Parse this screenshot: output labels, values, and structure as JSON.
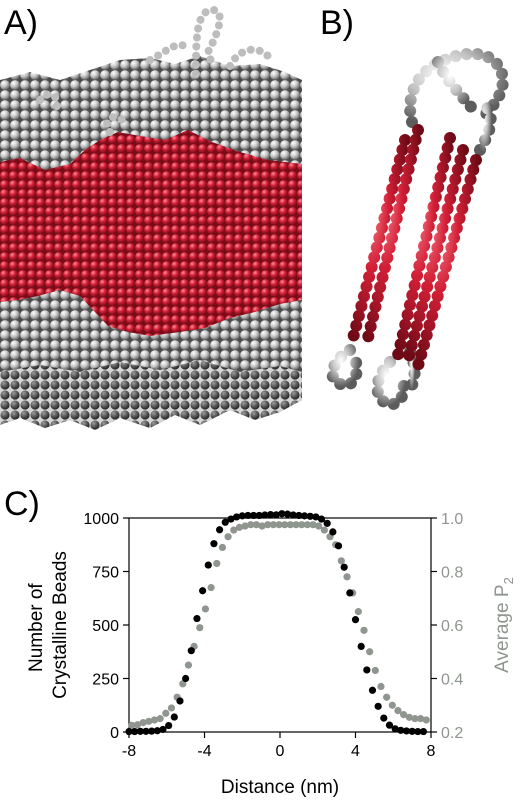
{
  "panels": {
    "a_label": "A)",
    "b_label": "B)",
    "c_label": "C)"
  },
  "colors": {
    "crystalline": "#cc1a30",
    "amorphous": "#b8b8b8",
    "black_series": "#000000",
    "grey_series": "#8f958f"
  },
  "chart_data": {
    "type": "scatter",
    "xlabel": "Distance (nm)",
    "ylabel_left": "Number of Crystalline Beads",
    "ylabel_left_lines": [
      "Number of",
      "Crystalline Beads"
    ],
    "ylabel_right": "Average P2",
    "ylabel_right_main": "Average P",
    "ylabel_right_sub": "2",
    "xlim": [
      -8,
      8
    ],
    "ylim_left": [
      0,
      1000
    ],
    "ylim_right": [
      0.2,
      1.0
    ],
    "x_ticks": [
      -8,
      -4,
      0,
      4,
      8
    ],
    "y_ticks_left": [
      0,
      250,
      500,
      750,
      1000
    ],
    "y_ticks_right": [
      "0.2",
      "0.4",
      "0.6",
      "0.8",
      "1.0"
    ],
    "series": [
      {
        "axis": "left",
        "color": "#000000",
        "x": [
          -8.0,
          -7.7,
          -7.4,
          -7.1,
          -6.8,
          -6.5,
          -6.2,
          -5.9,
          -5.6,
          -5.3,
          -5.0,
          -4.7,
          -4.4,
          -4.1,
          -3.8,
          -3.5,
          -3.2,
          -2.9,
          -2.6,
          -2.3,
          -2.0,
          -1.7,
          -1.4,
          -1.1,
          -0.8,
          -0.5,
          -0.2,
          0.1,
          0.4,
          0.7,
          1.0,
          1.3,
          1.6,
          1.9,
          2.2,
          2.5,
          2.8,
          3.1,
          3.4,
          3.7,
          4.0,
          4.3,
          4.6,
          4.9,
          5.2,
          5.5,
          5.8,
          6.1,
          6.4,
          6.7,
          7.0,
          7.3,
          7.6
        ],
        "values": [
          2,
          2,
          3,
          3,
          4,
          6,
          12,
          30,
          70,
          145,
          250,
          380,
          530,
          660,
          780,
          880,
          945,
          980,
          995,
          1005,
          1010,
          1012,
          1012,
          1012,
          1014,
          1016,
          1015,
          1020,
          1018,
          1014,
          1012,
          1010,
          1008,
          1005,
          995,
          975,
          935,
          870,
          770,
          650,
          525,
          400,
          290,
          195,
          120,
          65,
          32,
          15,
          8,
          5,
          3,
          2,
          2
        ]
      },
      {
        "axis": "right",
        "color": "#8f958f",
        "x": [
          -7.85,
          -7.55,
          -7.25,
          -6.95,
          -6.65,
          -6.35,
          -6.05,
          -5.75,
          -5.45,
          -5.15,
          -4.85,
          -4.55,
          -4.25,
          -3.95,
          -3.65,
          -3.35,
          -3.05,
          -2.75,
          -2.45,
          -2.15,
          -1.85,
          -1.55,
          -1.25,
          -0.95,
          -0.65,
          -0.35,
          -0.05,
          0.25,
          0.55,
          0.85,
          1.15,
          1.45,
          1.75,
          2.05,
          2.35,
          2.65,
          2.95,
          3.25,
          3.55,
          3.85,
          4.15,
          4.45,
          4.75,
          5.05,
          5.35,
          5.65,
          5.95,
          6.25,
          6.55,
          6.85,
          7.15,
          7.45,
          7.75
        ],
        "values": [
          0.225,
          0.227,
          0.235,
          0.24,
          0.245,
          0.25,
          0.27,
          0.29,
          0.33,
          0.38,
          0.45,
          0.52,
          0.59,
          0.66,
          0.74,
          0.83,
          0.89,
          0.93,
          0.955,
          0.965,
          0.97,
          0.975,
          0.975,
          0.97,
          0.975,
          0.975,
          0.975,
          0.975,
          0.975,
          0.975,
          0.975,
          0.975,
          0.975,
          0.97,
          0.955,
          0.93,
          0.9,
          0.84,
          0.78,
          0.72,
          0.65,
          0.58,
          0.5,
          0.43,
          0.37,
          0.33,
          0.3,
          0.28,
          0.265,
          0.255,
          0.25,
          0.25,
          0.245
        ]
      }
    ]
  }
}
